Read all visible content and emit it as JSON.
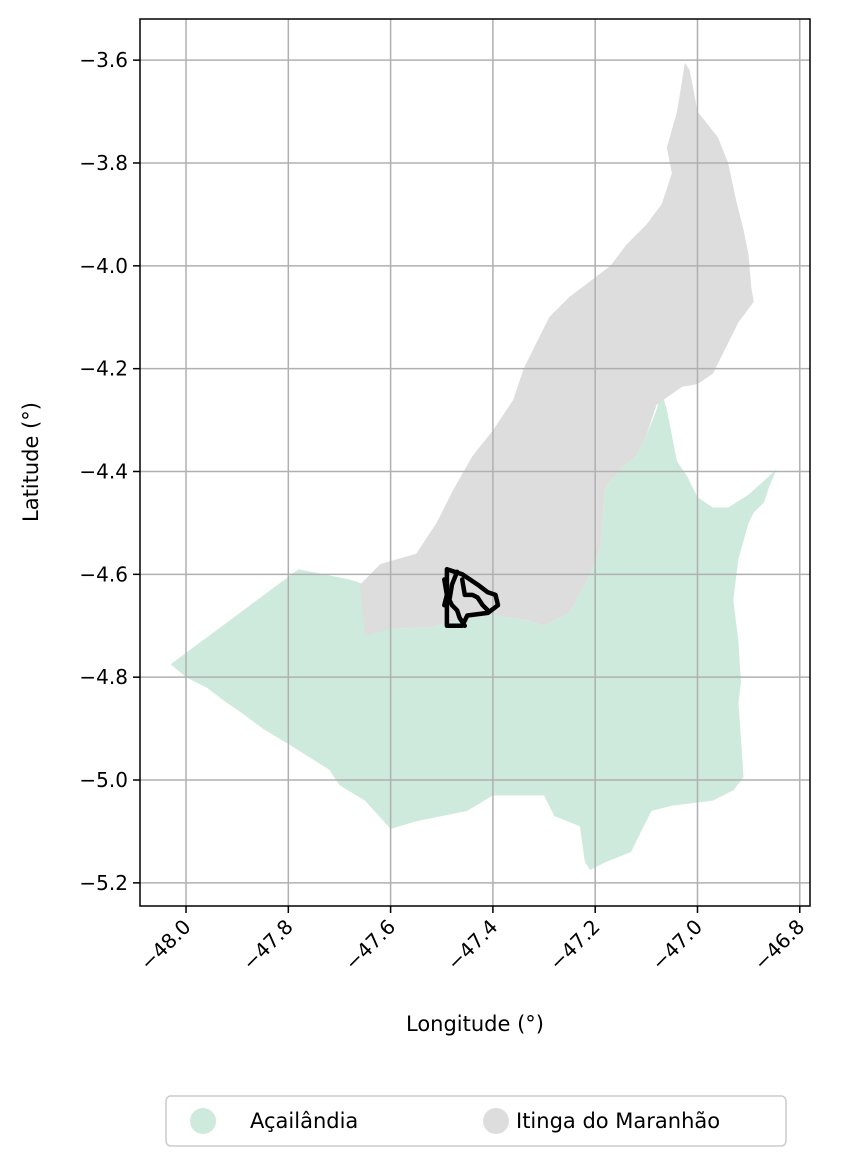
{
  "chart_data": {
    "type": "map",
    "xlabel": "Longitude (°)",
    "ylabel": "Latitude (°)",
    "xlim": [
      -48.09,
      -46.78
    ],
    "ylim": [
      -5.245,
      -3.52
    ],
    "xticks": [
      -48.0,
      -47.8,
      -47.6,
      -47.4,
      -47.2,
      -47.0,
      -46.8
    ],
    "xtick_labels": [
      "−48.0",
      "−47.8",
      "−47.6",
      "−47.4",
      "−47.2",
      "−47.0",
      "−46.8"
    ],
    "yticks": [
      -3.6,
      -3.8,
      -4.0,
      -4.2,
      -4.4,
      -4.6,
      -4.8,
      -5.0,
      -5.2
    ],
    "ytick_labels": [
      "−3.6",
      "−3.8",
      "−4.0",
      "−4.2",
      "−4.4",
      "−4.6",
      "−4.8",
      "−5.0",
      "−5.2"
    ],
    "grid": true,
    "legend_placement": "bottom-center",
    "series": [
      {
        "name": "Açailândia",
        "color": "#cdeadd",
        "polygon": [
          [
            -48.03,
            -4.775
          ],
          [
            -47.78,
            -4.59
          ],
          [
            -47.68,
            -4.61
          ],
          [
            -47.65,
            -4.62
          ],
          [
            -47.63,
            -4.69
          ],
          [
            -47.6,
            -4.706
          ],
          [
            -47.52,
            -4.703
          ],
          [
            -47.47,
            -4.69
          ],
          [
            -47.4,
            -4.68
          ],
          [
            -47.33,
            -4.69
          ],
          [
            -47.3,
            -4.7
          ],
          [
            -47.25,
            -4.675
          ],
          [
            -47.21,
            -4.6
          ],
          [
            -47.19,
            -4.55
          ],
          [
            -47.18,
            -4.43
          ],
          [
            -47.15,
            -4.395
          ],
          [
            -47.12,
            -4.37
          ],
          [
            -47.1,
            -4.33
          ],
          [
            -47.08,
            -4.28
          ],
          [
            -47.07,
            -4.245
          ],
          [
            -47.06,
            -4.28
          ],
          [
            -47.05,
            -4.33
          ],
          [
            -47.04,
            -4.38
          ],
          [
            -47.02,
            -4.41
          ],
          [
            -47.0,
            -4.45
          ],
          [
            -46.97,
            -4.47
          ],
          [
            -46.94,
            -4.47
          ],
          [
            -46.9,
            -4.445
          ],
          [
            -46.85,
            -4.4
          ],
          [
            -46.845,
            -4.395
          ],
          [
            -46.86,
            -4.43
          ],
          [
            -46.87,
            -4.46
          ],
          [
            -46.88,
            -4.47
          ],
          [
            -46.89,
            -4.48
          ],
          [
            -46.9,
            -4.5
          ],
          [
            -46.92,
            -4.57
          ],
          [
            -46.93,
            -4.65
          ],
          [
            -46.92,
            -4.73
          ],
          [
            -46.915,
            -4.81
          ],
          [
            -46.92,
            -4.85
          ],
          [
            -46.915,
            -4.92
          ],
          [
            -46.91,
            -4.995
          ],
          [
            -46.93,
            -5.02
          ],
          [
            -46.97,
            -5.04
          ],
          [
            -47.05,
            -5.05
          ],
          [
            -47.09,
            -5.06
          ],
          [
            -47.11,
            -5.1
          ],
          [
            -47.13,
            -5.14
          ],
          [
            -47.18,
            -5.16
          ],
          [
            -47.21,
            -5.175
          ],
          [
            -47.22,
            -5.16
          ],
          [
            -47.23,
            -5.09
          ],
          [
            -47.28,
            -5.07
          ],
          [
            -47.3,
            -5.03
          ],
          [
            -47.35,
            -5.03
          ],
          [
            -47.4,
            -5.03
          ],
          [
            -47.45,
            -5.06
          ],
          [
            -47.55,
            -5.08
          ],
          [
            -47.6,
            -5.095
          ],
          [
            -47.65,
            -5.04
          ],
          [
            -47.7,
            -5.01
          ],
          [
            -47.72,
            -4.98
          ],
          [
            -47.8,
            -4.93
          ],
          [
            -47.85,
            -4.9
          ],
          [
            -47.89,
            -4.87
          ],
          [
            -47.92,
            -4.85
          ],
          [
            -47.96,
            -4.82
          ],
          [
            -48.0,
            -4.8
          ],
          [
            -48.03,
            -4.775
          ]
        ]
      },
      {
        "name": "Itinga do Maranhão",
        "color": "#dddddd",
        "polygon": [
          [
            -47.65,
            -4.72
          ],
          [
            -47.66,
            -4.62
          ],
          [
            -47.62,
            -4.58
          ],
          [
            -47.55,
            -4.56
          ],
          [
            -47.51,
            -4.5
          ],
          [
            -47.48,
            -4.44
          ],
          [
            -47.44,
            -4.37
          ],
          [
            -47.4,
            -4.32
          ],
          [
            -47.36,
            -4.26
          ],
          [
            -47.34,
            -4.2
          ],
          [
            -47.31,
            -4.14
          ],
          [
            -47.29,
            -4.1
          ],
          [
            -47.25,
            -4.06
          ],
          [
            -47.21,
            -4.03
          ],
          [
            -47.17,
            -4.0
          ],
          [
            -47.14,
            -3.96
          ],
          [
            -47.1,
            -3.92
          ],
          [
            -47.07,
            -3.88
          ],
          [
            -47.05,
            -3.82
          ],
          [
            -47.06,
            -3.77
          ],
          [
            -47.04,
            -3.7
          ],
          [
            -47.03,
            -3.64
          ],
          [
            -47.025,
            -3.605
          ],
          [
            -47.015,
            -3.62
          ],
          [
            -47.0,
            -3.7
          ],
          [
            -46.96,
            -3.75
          ],
          [
            -46.94,
            -3.8
          ],
          [
            -46.925,
            -3.87
          ],
          [
            -46.91,
            -3.93
          ],
          [
            -46.9,
            -3.98
          ],
          [
            -46.895,
            -4.04
          ],
          [
            -46.89,
            -4.07
          ],
          [
            -46.905,
            -4.09
          ],
          [
            -46.92,
            -4.11
          ],
          [
            -46.95,
            -4.17
          ],
          [
            -46.97,
            -4.21
          ],
          [
            -47.0,
            -4.23
          ],
          [
            -47.03,
            -4.235
          ],
          [
            -47.08,
            -4.27
          ],
          [
            -47.1,
            -4.33
          ],
          [
            -47.12,
            -4.37
          ],
          [
            -47.15,
            -4.395
          ],
          [
            -47.18,
            -4.43
          ],
          [
            -47.19,
            -4.55
          ],
          [
            -47.21,
            -4.6
          ],
          [
            -47.25,
            -4.675
          ],
          [
            -47.3,
            -4.7
          ],
          [
            -47.33,
            -4.69
          ],
          [
            -47.4,
            -4.68
          ],
          [
            -47.47,
            -4.69
          ],
          [
            -47.52,
            -4.703
          ],
          [
            -47.6,
            -4.706
          ],
          [
            -47.65,
            -4.72
          ]
        ]
      }
    ],
    "overlay": {
      "color": "#000000",
      "paths": [
        [
          [
            -47.49,
            -4.59
          ],
          [
            -47.49,
            -4.7
          ],
          [
            -47.46,
            -4.7
          ],
          [
            -47.45,
            -4.68
          ],
          [
            -47.41,
            -4.675
          ],
          [
            -47.39,
            -4.66
          ],
          [
            -47.395,
            -4.64
          ],
          [
            -47.41,
            -4.635
          ],
          [
            -47.43,
            -4.62
          ],
          [
            -47.46,
            -4.6
          ],
          [
            -47.49,
            -4.59
          ]
        ],
        [
          [
            -47.47,
            -4.595
          ],
          [
            -47.48,
            -4.62
          ],
          [
            -47.485,
            -4.65
          ],
          [
            -47.48,
            -4.66
          ],
          [
            -47.47,
            -4.67
          ],
          [
            -47.465,
            -4.685
          ],
          [
            -47.455,
            -4.7
          ]
        ],
        [
          [
            -47.46,
            -4.61
          ],
          [
            -47.455,
            -4.64
          ],
          [
            -47.44,
            -4.64
          ],
          [
            -47.43,
            -4.645
          ],
          [
            -47.42,
            -4.66
          ],
          [
            -47.41,
            -4.67
          ]
        ],
        [
          [
            -47.495,
            -4.61
          ],
          [
            -47.49,
            -4.64
          ],
          [
            -47.495,
            -4.66
          ]
        ]
      ]
    }
  }
}
